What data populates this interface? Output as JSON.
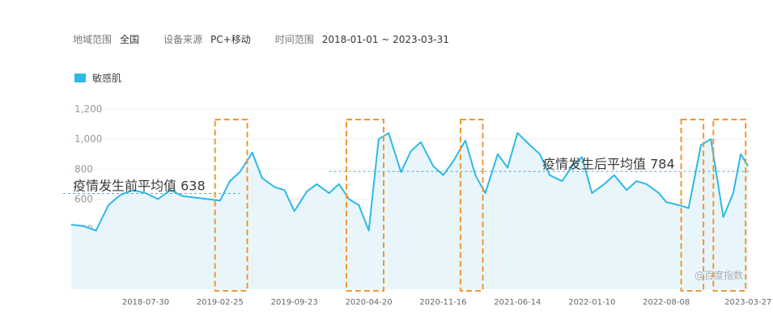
{
  "filters": {
    "region_label": "地域范围",
    "region_value": "全国",
    "device_label": "设备来源",
    "device_value": "PC+移动",
    "time_label": "时间范围",
    "time_value": "2018-01-01 ~ 2023-03-31"
  },
  "watermark": "@百度指数",
  "colors": {
    "line": "#2eb8e6",
    "fill": "#e8f6fc",
    "box": "#f0962f",
    "avg": "#5aa8c8"
  },
  "chart_data": {
    "type": "line",
    "title": "",
    "xlabel": "",
    "ylabel": "",
    "ylim": [
      0,
      1200
    ],
    "yticks": [
      200,
      400,
      600,
      800,
      1000,
      1200
    ],
    "ytick_labels": [
      "200",
      "400",
      "600",
      "800",
      "1,000",
      "1,200"
    ],
    "xticks": [
      "2018-07-30",
      "2019-02-25",
      "2019-09-23",
      "2020-04-20",
      "2020-11-16",
      "2021-06-14",
      "2022-01-10",
      "2022-08-08",
      "2023-03-27"
    ],
    "x_range": [
      "2018-01-01",
      "2023-03-31"
    ],
    "legend": {
      "position": "top-left",
      "entries": [
        "敏感肌"
      ]
    },
    "grid": true,
    "series": [
      {
        "name": "敏感肌",
        "x": [
          "2018-01-01",
          "2018-02-05",
          "2018-03-12",
          "2018-04-16",
          "2018-05-21",
          "2018-06-25",
          "2018-07-30",
          "2018-09-03",
          "2018-10-08",
          "2018-11-12",
          "2018-12-17",
          "2019-01-21",
          "2019-02-25",
          "2019-03-25",
          "2019-04-22",
          "2019-05-27",
          "2019-06-24",
          "2019-07-29",
          "2019-08-26",
          "2019-09-23",
          "2019-10-28",
          "2019-11-25",
          "2019-12-30",
          "2020-01-27",
          "2020-02-24",
          "2020-03-23",
          "2020-04-20",
          "2020-05-18",
          "2020-06-15",
          "2020-07-20",
          "2020-08-17",
          "2020-09-14",
          "2020-10-19",
          "2020-11-16",
          "2020-12-14",
          "2021-01-18",
          "2021-02-15",
          "2021-03-15",
          "2021-04-19",
          "2021-05-17",
          "2021-06-14",
          "2021-07-19",
          "2021-08-16",
          "2021-09-13",
          "2021-10-18",
          "2021-11-15",
          "2021-12-13",
          "2022-01-10",
          "2022-02-14",
          "2022-03-14",
          "2022-04-18",
          "2022-05-16",
          "2022-06-13",
          "2022-07-18",
          "2022-08-08",
          "2022-09-12",
          "2022-10-10",
          "2022-11-14",
          "2022-12-12",
          "2023-01-16",
          "2023-02-13",
          "2023-03-06",
          "2023-03-27"
        ],
        "values": [
          430,
          420,
          390,
          560,
          630,
          660,
          640,
          600,
          660,
          620,
          610,
          600,
          590,
          720,
          780,
          910,
          740,
          680,
          660,
          520,
          650,
          700,
          640,
          700,
          600,
          560,
          390,
          1000,
          1040,
          780,
          920,
          980,
          820,
          760,
          850,
          990,
          760,
          640,
          900,
          810,
          1040,
          960,
          900,
          760,
          720,
          820,
          880,
          640,
          700,
          760,
          660,
          720,
          700,
          640,
          580,
          560,
          540,
          960,
          1000,
          480,
          640,
          900,
          820
        ]
      }
    ],
    "annotations": [
      {
        "text": "疫情发生前平均值 638",
        "value": 638,
        "from": "2018-01-01",
        "to": "2019-04-22"
      },
      {
        "text": "疫情发生后平均值 784",
        "value": 784,
        "from": "2019-12-30",
        "to": "2023-03-31"
      }
    ],
    "highlight_ranges": [
      [
        "2019-02-11",
        "2019-05-13"
      ],
      [
        "2020-02-17",
        "2020-06-01"
      ],
      [
        "2021-01-04",
        "2021-03-08"
      ],
      [
        "2022-09-19",
        "2022-11-21"
      ],
      [
        "2022-12-19",
        "2023-03-20"
      ]
    ]
  }
}
